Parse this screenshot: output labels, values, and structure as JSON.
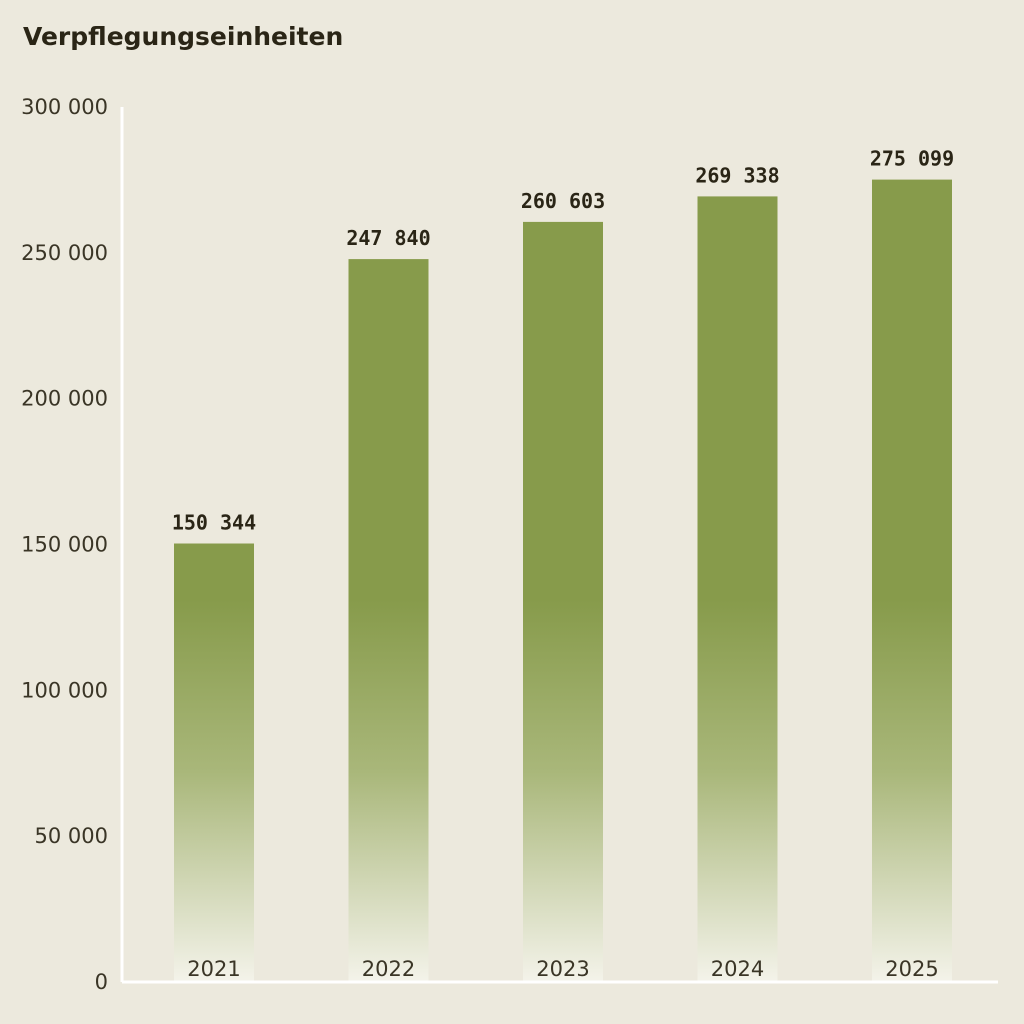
{
  "chart_data": {
    "type": "bar",
    "title": "Verpflegungseinheiten",
    "categories": [
      "2021",
      "2022",
      "2023",
      "2024",
      "2025"
    ],
    "values": [
      150344,
      247840,
      260603,
      269338,
      275099
    ],
    "value_labels": [
      "150 344",
      "247 840",
      "260 603",
      "269 338",
      "275 099"
    ],
    "yticks": [
      0,
      50000,
      100000,
      150000,
      200000,
      250000,
      300000
    ],
    "ytick_labels": [
      "0",
      "50 000",
      "100 000",
      "150 000",
      "200 000",
      "250 000",
      "300 000"
    ],
    "ylim": [
      0,
      300000
    ],
    "grid": false,
    "xlabel": "",
    "ylabel": "",
    "colors": {
      "bar_top": "#879b4b",
      "bar_bottom": "#f4f3ea",
      "background": "#ece9dd",
      "axis": "#ffffff"
    }
  }
}
